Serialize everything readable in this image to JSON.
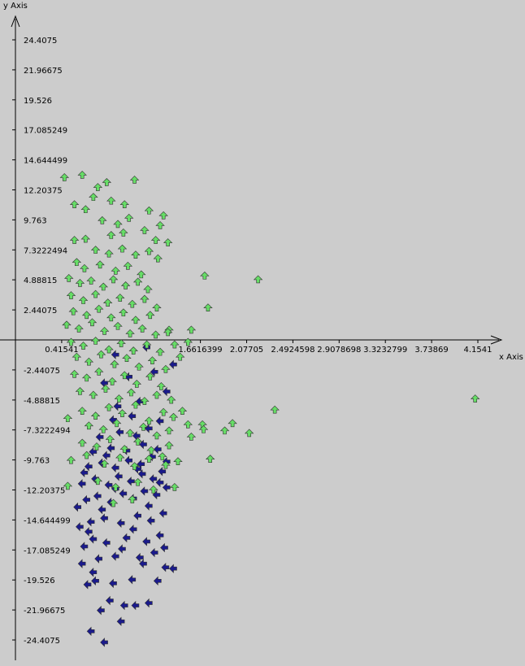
{
  "chart_data": {
    "type": "scatter",
    "title": "",
    "xlabel": "x Axis",
    "ylabel": "y Axis",
    "xlim": [
      0,
      4.35
    ],
    "ylim": [
      -25.6,
      26.2
    ],
    "grid": false,
    "x_ticks": [
      {
        "value": 0.41541,
        "label": "0.41541"
      },
      {
        "value": 1.6616399,
        "label": "1.6616399"
      },
      {
        "value": 2.07705,
        "label": "2.07705"
      },
      {
        "value": 2.4924598,
        "label": "2.4924598"
      },
      {
        "value": 2.9078698,
        "label": "2.9078698"
      },
      {
        "value": 3.3232799,
        "label": "3.3232799"
      },
      {
        "value": 3.73869,
        "label": "3.73869"
      },
      {
        "value": 4.1541,
        "label": "4.1541"
      }
    ],
    "y_ticks": [
      {
        "value": 24.4075,
        "label": "24.4075"
      },
      {
        "value": 21.96675,
        "label": "21.96675"
      },
      {
        "value": 19.526,
        "label": "19.526"
      },
      {
        "value": 17.085249,
        "label": "17.085249"
      },
      {
        "value": 14.644499,
        "label": "14.644499"
      },
      {
        "value": 12.20375,
        "label": "12.20375"
      },
      {
        "value": 9.763,
        "label": "9.763"
      },
      {
        "value": 7.3222494,
        "label": "7.3222494"
      },
      {
        "value": 4.88815,
        "label": "4.88815"
      },
      {
        "value": 2.44075,
        "label": "2.44075"
      },
      {
        "value": -2.44075,
        "label": "-2.44075"
      },
      {
        "value": -4.88815,
        "label": "-4.88815"
      },
      {
        "value": -7.3222494,
        "label": "-7.3222494"
      },
      {
        "value": -9.763,
        "label": "-9.763"
      },
      {
        "value": -12.20375,
        "label": "-12.20375"
      },
      {
        "value": -14.644499,
        "label": "-14.644499"
      },
      {
        "value": -17.085249,
        "label": "-17.085249"
      },
      {
        "value": -19.526,
        "label": "-19.526"
      },
      {
        "value": -21.96675,
        "label": "-21.96675"
      },
      {
        "value": -24.4075,
        "label": "-24.4075"
      }
    ],
    "series": [
      {
        "color": "#1a1a8c",
        "marker": "left-arrow",
        "points": [
          [
            0.8,
            -24.6
          ],
          [
            0.68,
            -23.7
          ],
          [
            0.95,
            -22.9
          ],
          [
            0.77,
            -22.0
          ],
          [
            0.98,
            -21.6
          ],
          [
            1.08,
            -21.6
          ],
          [
            1.2,
            -21.4
          ],
          [
            0.85,
            -21.2
          ],
          [
            0.65,
            -19.9
          ],
          [
            0.72,
            -19.6
          ],
          [
            0.88,
            -19.8
          ],
          [
            1.05,
            -19.5
          ],
          [
            1.28,
            -19.6
          ],
          [
            1.35,
            -18.5
          ],
          [
            1.42,
            -18.6
          ],
          [
            0.6,
            -18.2
          ],
          [
            0.75,
            -17.8
          ],
          [
            0.9,
            -17.6
          ],
          [
            1.12,
            -17.7
          ],
          [
            1.25,
            -17.3
          ],
          [
            0.62,
            -16.8
          ],
          [
            0.7,
            -16.2
          ],
          [
            0.82,
            -16.5
          ],
          [
            1.0,
            -16.1
          ],
          [
            1.18,
            -16.4
          ],
          [
            1.3,
            -15.9
          ],
          [
            0.58,
            -15.2
          ],
          [
            0.68,
            -14.8
          ],
          [
            0.8,
            -14.5
          ],
          [
            0.95,
            -14.9
          ],
          [
            1.1,
            -14.3
          ],
          [
            1.22,
            -14.7
          ],
          [
            1.33,
            -14.1
          ],
          [
            0.56,
            -13.6
          ],
          [
            0.64,
            -13.0
          ],
          [
            0.74,
            -12.7
          ],
          [
            0.86,
            -13.2
          ],
          [
            0.97,
            -12.5
          ],
          [
            1.06,
            -12.9
          ],
          [
            1.16,
            -12.3
          ],
          [
            1.27,
            -12.6
          ],
          [
            1.36,
            -12.0
          ],
          [
            0.6,
            -11.7
          ],
          [
            0.72,
            -11.3
          ],
          [
            0.84,
            -11.8
          ],
          [
            0.93,
            -11.1
          ],
          [
            1.04,
            -11.5
          ],
          [
            1.14,
            -10.9
          ],
          [
            1.24,
            -11.3
          ],
          [
            1.32,
            -10.7
          ],
          [
            0.66,
            -10.3
          ],
          [
            0.78,
            -10.0
          ],
          [
            0.9,
            -10.4
          ],
          [
            1.02,
            -9.8
          ],
          [
            1.13,
            -10.1
          ],
          [
            1.23,
            -9.5
          ],
          [
            0.7,
            -9.1
          ],
          [
            0.86,
            -8.8
          ],
          [
            1.0,
            -9.0
          ],
          [
            1.15,
            -8.5
          ],
          [
            1.28,
            -8.9
          ],
          [
            0.76,
            -7.9
          ],
          [
            0.94,
            -7.5
          ],
          [
            1.09,
            -7.8
          ],
          [
            1.2,
            -7.2
          ],
          [
            0.88,
            -6.5
          ],
          [
            1.05,
            -6.2
          ],
          [
            1.3,
            -6.6
          ],
          [
            0.92,
            -5.4
          ],
          [
            1.12,
            -5.0
          ],
          [
            1.36,
            -4.2
          ],
          [
            0.8,
            -3.5
          ],
          [
            1.02,
            -3.0
          ],
          [
            1.25,
            -2.6
          ],
          [
            1.42,
            -2.0
          ],
          [
            0.9,
            -1.2
          ],
          [
            1.18,
            -0.6
          ],
          [
            0.7,
            -18.9
          ],
          [
            1.15,
            -18.2
          ],
          [
            0.96,
            -17.0
          ],
          [
            1.34,
            -16.9
          ],
          [
            0.66,
            -15.6
          ],
          [
            1.06,
            -15.4
          ],
          [
            0.78,
            -13.8
          ],
          [
            1.2,
            -13.5
          ],
          [
            0.9,
            -12.1
          ],
          [
            1.3,
            -11.6
          ],
          [
            0.62,
            -10.8
          ],
          [
            1.1,
            -10.5
          ],
          [
            0.82,
            -9.4
          ],
          [
            1.36,
            -9.9
          ]
        ]
      },
      {
        "color": "#66dd66",
        "marker": "up-arrow",
        "points": [
          [
            0.44,
            13.2
          ],
          [
            0.6,
            13.4
          ],
          [
            0.82,
            12.8
          ],
          [
            1.07,
            13.0
          ],
          [
            0.74,
            12.4
          ],
          [
            0.53,
            11.0
          ],
          [
            0.63,
            10.6
          ],
          [
            0.7,
            11.6
          ],
          [
            0.86,
            11.3
          ],
          [
            0.98,
            11.0
          ],
          [
            1.2,
            10.5
          ],
          [
            1.33,
            10.1
          ],
          [
            0.78,
            9.7
          ],
          [
            0.92,
            9.4
          ],
          [
            1.02,
            9.9
          ],
          [
            1.3,
            9.3
          ],
          [
            1.16,
            8.9
          ],
          [
            0.86,
            8.5
          ],
          [
            0.97,
            8.7
          ],
          [
            1.26,
            8.1
          ],
          [
            1.37,
            7.9
          ],
          [
            0.53,
            8.1
          ],
          [
            0.63,
            8.2
          ],
          [
            0.72,
            7.3
          ],
          [
            0.84,
            7.0
          ],
          [
            0.96,
            7.4
          ],
          [
            1.08,
            6.9
          ],
          [
            1.2,
            7.2
          ],
          [
            1.28,
            6.6
          ],
          [
            0.55,
            6.3
          ],
          [
            0.62,
            5.8
          ],
          [
            0.76,
            6.1
          ],
          [
            0.9,
            5.6
          ],
          [
            1.01,
            6.0
          ],
          [
            1.13,
            5.3
          ],
          [
            0.48,
            5.0
          ],
          [
            0.58,
            4.6
          ],
          [
            0.68,
            4.8
          ],
          [
            0.79,
            4.3
          ],
          [
            0.88,
            4.9
          ],
          [
            0.99,
            4.4
          ],
          [
            1.1,
            4.7
          ],
          [
            1.19,
            4.1
          ],
          [
            0.5,
            3.6
          ],
          [
            0.61,
            3.2
          ],
          [
            0.72,
            3.7
          ],
          [
            0.83,
            3.0
          ],
          [
            0.94,
            3.4
          ],
          [
            1.05,
            2.9
          ],
          [
            1.16,
            3.3
          ],
          [
            1.27,
            2.6
          ],
          [
            0.52,
            2.3
          ],
          [
            0.64,
            2.0
          ],
          [
            0.75,
            2.5
          ],
          [
            0.86,
            1.8
          ],
          [
            0.97,
            2.2
          ],
          [
            1.08,
            1.6
          ],
          [
            1.21,
            2.0
          ],
          [
            0.46,
            1.2
          ],
          [
            0.57,
            0.9
          ],
          [
            0.69,
            1.4
          ],
          [
            0.8,
            0.7
          ],
          [
            0.92,
            1.1
          ],
          [
            1.03,
            0.5
          ],
          [
            1.14,
            0.9
          ],
          [
            1.26,
            0.4
          ],
          [
            1.38,
            0.8
          ],
          [
            0.5,
            -0.2
          ],
          [
            0.61,
            -0.5
          ],
          [
            0.72,
            -0.1
          ],
          [
            0.84,
            -0.8
          ],
          [
            0.95,
            -0.3
          ],
          [
            1.06,
            -0.9
          ],
          [
            1.18,
            -0.4
          ],
          [
            1.3,
            -1.0
          ],
          [
            0.55,
            -1.4
          ],
          [
            0.66,
            -1.8
          ],
          [
            0.77,
            -1.2
          ],
          [
            0.89,
            -2.0
          ],
          [
            1.0,
            -1.5
          ],
          [
            1.11,
            -2.2
          ],
          [
            1.23,
            -1.7
          ],
          [
            1.35,
            -2.4
          ],
          [
            0.53,
            -2.8
          ],
          [
            0.64,
            -3.1
          ],
          [
            0.75,
            -2.6
          ],
          [
            0.87,
            -3.4
          ],
          [
            0.98,
            -2.9
          ],
          [
            1.09,
            -3.6
          ],
          [
            1.21,
            -3.0
          ],
          [
            1.31,
            -3.8
          ],
          [
            0.58,
            -4.2
          ],
          [
            0.7,
            -4.5
          ],
          [
            0.81,
            -4.0
          ],
          [
            0.93,
            -4.8
          ],
          [
            1.04,
            -4.3
          ],
          [
            1.16,
            -5.0
          ],
          [
            1.27,
            -4.5
          ],
          [
            1.4,
            -4.9
          ],
          [
            0.47,
            -6.4
          ],
          [
            0.6,
            -5.8
          ],
          [
            0.72,
            -6.2
          ],
          [
            0.84,
            -5.5
          ],
          [
            0.96,
            -6.0
          ],
          [
            1.08,
            -5.3
          ],
          [
            1.2,
            -6.6
          ],
          [
            1.33,
            -5.9
          ],
          [
            1.42,
            -6.3
          ],
          [
            0.66,
            -7.0
          ],
          [
            0.79,
            -7.3
          ],
          [
            0.91,
            -6.8
          ],
          [
            1.03,
            -7.6
          ],
          [
            1.15,
            -7.1
          ],
          [
            1.27,
            -7.8
          ],
          [
            1.38,
            -7.4
          ],
          [
            0.6,
            -8.4
          ],
          [
            0.73,
            -8.7
          ],
          [
            0.85,
            -8.1
          ],
          [
            0.98,
            -8.9
          ],
          [
            1.1,
            -8.3
          ],
          [
            1.22,
            -9.0
          ],
          [
            1.38,
            -8.6
          ],
          [
            0.5,
            -9.8
          ],
          [
            0.64,
            -9.4
          ],
          [
            0.8,
            -10.1
          ],
          [
            0.94,
            -9.6
          ],
          [
            1.07,
            -10.3
          ],
          [
            1.2,
            -9.7
          ],
          [
            1.35,
            -10.2
          ],
          [
            0.47,
            -11.9
          ],
          [
            0.74,
            -11.5
          ],
          [
            0.9,
            -12.0
          ],
          [
            1.1,
            -11.6
          ],
          [
            1.24,
            -12.2
          ],
          [
            1.43,
            -12.0
          ],
          [
            0.88,
            -13.3
          ],
          [
            1.05,
            -13.0
          ],
          [
            1.32,
            -9.5
          ],
          [
            1.46,
            -9.9
          ],
          [
            1.5,
            -5.8
          ],
          [
            1.55,
            -6.9
          ],
          [
            1.58,
            -7.9
          ],
          [
            1.68,
            -6.9
          ],
          [
            1.69,
            -7.3
          ],
          [
            1.88,
            -7.4
          ],
          [
            1.95,
            -6.8
          ],
          [
            1.75,
            -9.7
          ],
          [
            2.1,
            -7.6
          ],
          [
            2.18,
            4.9
          ],
          [
            2.33,
            -5.7
          ],
          [
            4.13,
            -4.8
          ],
          [
            1.7,
            5.2
          ],
          [
            1.73,
            2.6
          ],
          [
            1.37,
            0.6
          ],
          [
            1.43,
            -0.4
          ],
          [
            1.58,
            0.8
          ],
          [
            1.55,
            -0.2
          ],
          [
            1.48,
            -1.4
          ]
        ]
      }
    ]
  }
}
